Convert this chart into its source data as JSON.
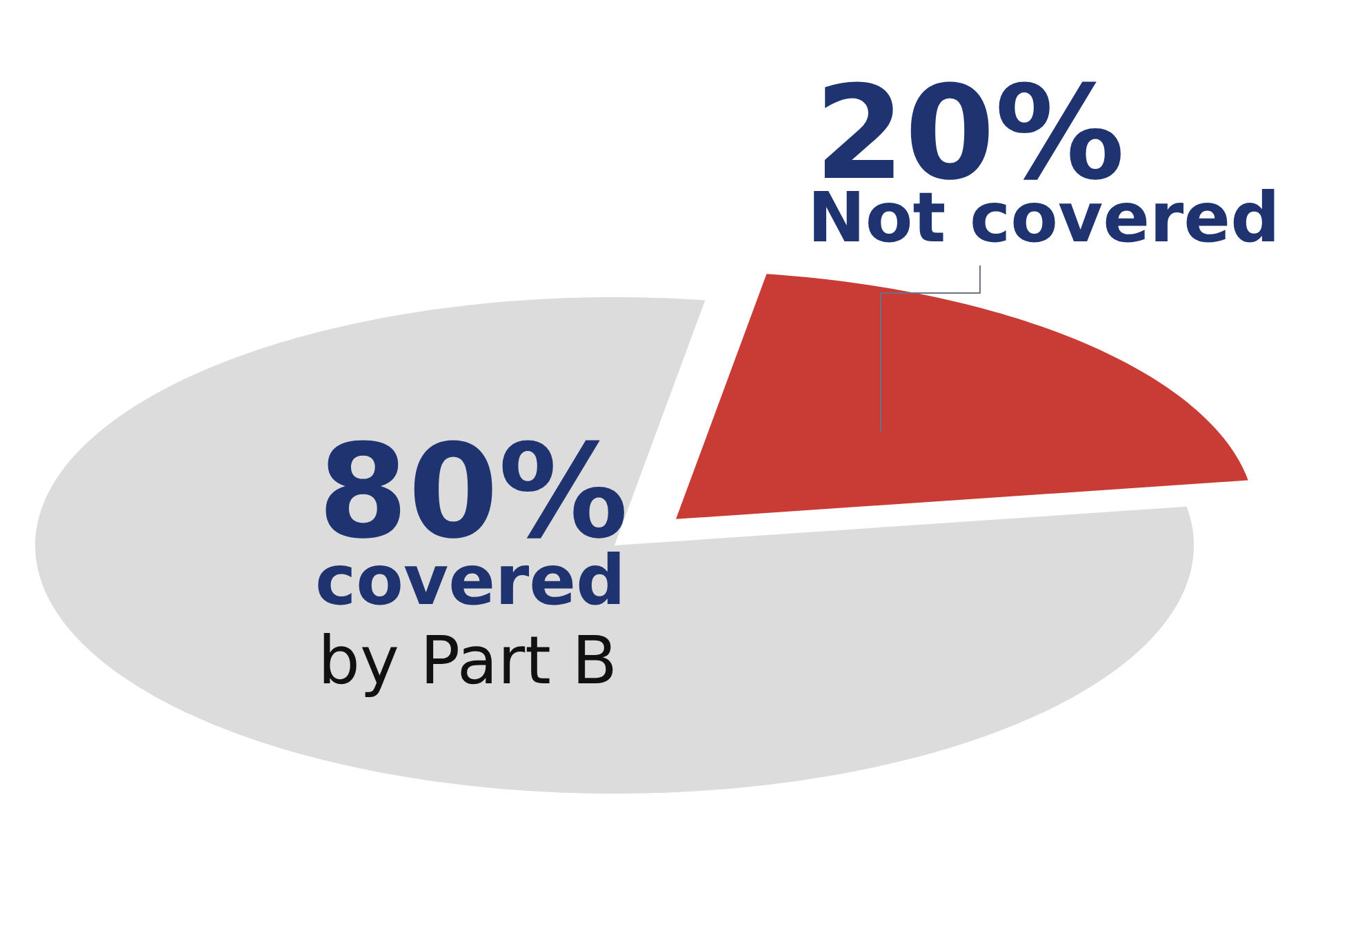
{
  "chart_data": {
    "type": "pie",
    "categories": [
      "covered\nby Part B",
      "Not covered"
    ],
    "values": [
      80,
      20
    ],
    "value_labels": [
      "80%",
      "20%"
    ],
    "colors": [
      "#dcdcdc",
      "#c93c35"
    ]
  }
}
